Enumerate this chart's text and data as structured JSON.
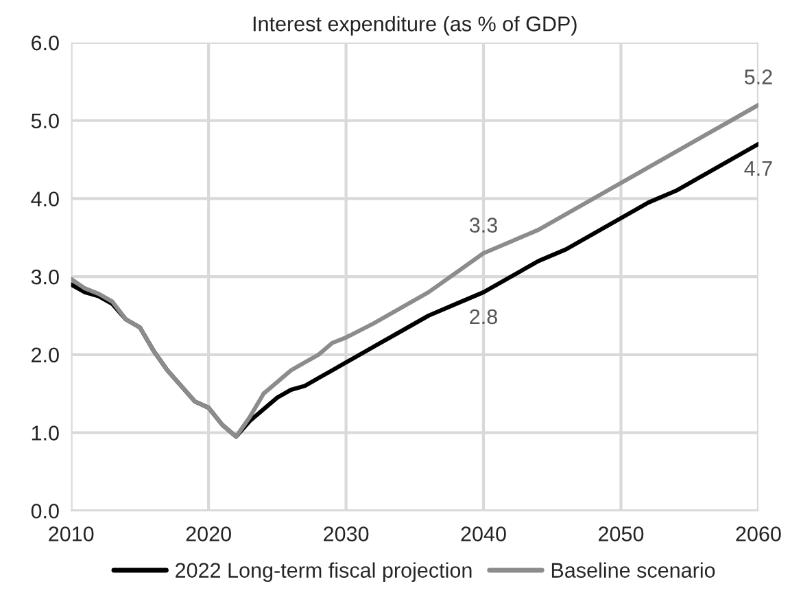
{
  "chart_data": {
    "type": "line",
    "title": "Interest expenditure (as % of GDP)",
    "x": [
      2010,
      2011,
      2012,
      2013,
      2014,
      2015,
      2016,
      2017,
      2018,
      2019,
      2020,
      2021,
      2022,
      2023,
      2024,
      2025,
      2026,
      2027,
      2028,
      2029,
      2030,
      2032,
      2034,
      2036,
      2038,
      2040,
      2042,
      2044,
      2046,
      2048,
      2050,
      2052,
      2054,
      2056,
      2058,
      2060
    ],
    "series": [
      {
        "name": "2022 Long-term fiscal projection",
        "color": "#000000",
        "values": [
          2.9,
          2.8,
          2.75,
          2.65,
          2.45,
          2.35,
          2.05,
          1.8,
          1.6,
          1.4,
          1.32,
          1.1,
          0.95,
          1.15,
          1.3,
          1.45,
          1.55,
          1.6,
          1.7,
          1.8,
          1.9,
          2.1,
          2.3,
          2.5,
          2.65,
          2.8,
          3.0,
          3.2,
          3.35,
          3.55,
          3.75,
          3.95,
          4.1,
          4.3,
          4.5,
          4.7
        ],
        "value_labels": [
          null,
          null,
          null,
          null,
          null,
          null,
          null,
          null,
          null,
          null,
          null,
          null,
          null,
          null,
          null,
          null,
          null,
          null,
          null,
          null,
          null,
          null,
          null,
          null,
          null,
          "2.8",
          null,
          null,
          null,
          null,
          null,
          null,
          null,
          null,
          null,
          "4.7"
        ]
      },
      {
        "name": "Baseline scenario",
        "color": "#8c8c8c",
        "values": [
          2.97,
          2.85,
          2.78,
          2.68,
          2.45,
          2.35,
          2.05,
          1.8,
          1.6,
          1.4,
          1.32,
          1.1,
          0.95,
          1.2,
          1.5,
          1.65,
          1.8,
          1.9,
          2.0,
          2.15,
          2.22,
          2.4,
          2.6,
          2.8,
          3.05,
          3.3,
          3.45,
          3.6,
          3.8,
          4.0,
          4.2,
          4.4,
          4.6,
          4.8,
          5.0,
          5.2
        ],
        "value_labels": [
          null,
          null,
          null,
          null,
          null,
          null,
          null,
          null,
          null,
          null,
          null,
          null,
          null,
          null,
          null,
          null,
          null,
          null,
          null,
          null,
          null,
          null,
          null,
          null,
          null,
          "3.3",
          null,
          null,
          null,
          null,
          null,
          null,
          null,
          null,
          null,
          "5.2"
        ]
      }
    ],
    "xlim": [
      2010,
      2060
    ],
    "xticks": [
      2010,
      2020,
      2030,
      2040,
      2050,
      2060
    ],
    "ylim": [
      0,
      6
    ],
    "yticks": [
      {
        "value": 0,
        "label": "0.0"
      },
      {
        "value": 1,
        "label": "1.0"
      },
      {
        "value": 2,
        "label": "2.0"
      },
      {
        "value": 3,
        "label": "3.0"
      },
      {
        "value": 4,
        "label": "4.0"
      },
      {
        "value": 5,
        "label": "5.0"
      },
      {
        "value": 6,
        "label": "6.0"
      }
    ],
    "grid": true,
    "legend": "bottom",
    "marker": "none",
    "line_style": "solid"
  }
}
